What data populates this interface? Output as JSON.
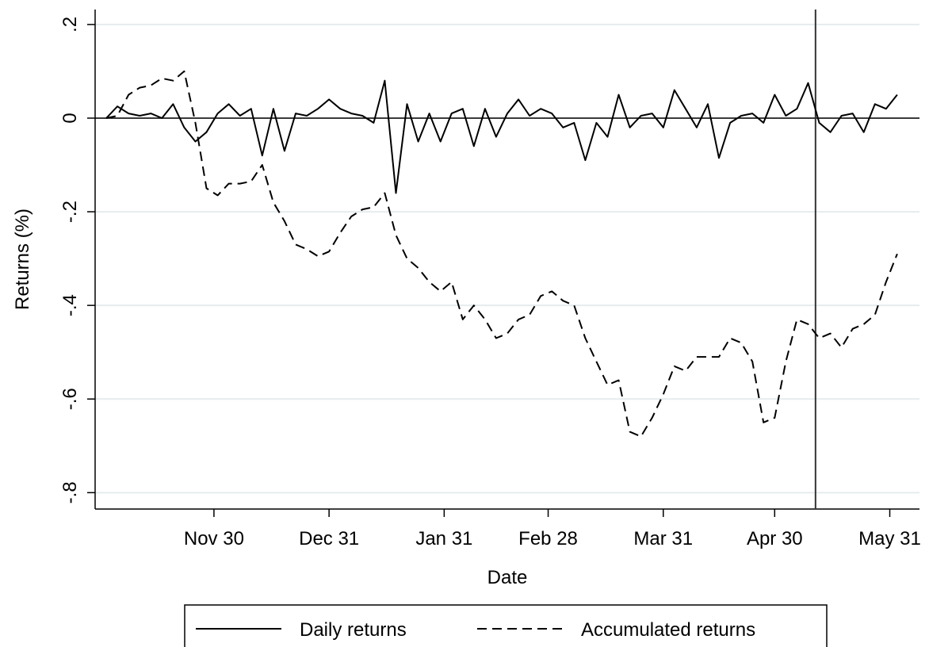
{
  "chart_data": {
    "type": "line",
    "xlabel": "Date",
    "ylabel": "Returns (%)",
    "x": [
      -29,
      -26,
      -23,
      -20,
      -17,
      -14,
      -11,
      -8,
      -5,
      -2,
      1,
      4,
      7,
      10,
      13,
      16,
      19,
      22,
      25,
      28,
      31,
      34,
      37,
      40,
      43,
      46,
      49,
      52,
      55,
      58,
      61,
      64,
      67,
      70,
      73,
      76,
      79,
      82,
      85,
      88,
      91,
      94,
      97,
      100,
      103,
      106,
      109,
      112,
      115,
      118,
      121,
      124,
      127,
      130,
      133,
      136,
      139,
      142,
      145,
      148,
      151,
      154,
      157,
      160,
      163,
      166,
      169,
      172,
      175,
      178,
      181,
      184
    ],
    "series": [
      {
        "name": "Daily returns",
        "color": "#000000",
        "dash": false,
        "values": [
          0,
          0.025,
          0.01,
          0.005,
          0.01,
          0,
          0.03,
          -0.02,
          -0.05,
          -0.03,
          0.01,
          0.03,
          0.005,
          0.02,
          -0.08,
          0.02,
          -0.07,
          0.01,
          0.005,
          0.02,
          0.04,
          0.02,
          0.01,
          0.005,
          -0.01,
          0.08,
          -0.16,
          0.03,
          -0.05,
          0.01,
          -0.05,
          0.01,
          0.02,
          -0.06,
          0.02,
          -0.04,
          0.01,
          0.04,
          0.005,
          0.02,
          0.01,
          -0.02,
          -0.01,
          -0.09,
          -0.01,
          -0.04,
          0.05,
          -0.02,
          0.005,
          0.01,
          -0.02,
          0.06,
          0.02,
          -0.02,
          0.03,
          -0.085,
          -0.01,
          0.005,
          0.01,
          -0.01,
          0.05,
          0.005,
          0.02,
          0.075,
          -0.01,
          -0.03,
          0.005,
          0.01,
          -0.03,
          0.03,
          0.02,
          0.05
        ]
      },
      {
        "name": "Accumulated returns",
        "color": "#000000",
        "dash": true,
        "values": [
          0,
          0.005,
          0.05,
          0.065,
          0.07,
          0.085,
          0.08,
          0.1,
          -0.01,
          -0.15,
          -0.165,
          -0.14,
          -0.14,
          -0.135,
          -0.1,
          -0.18,
          -0.22,
          -0.27,
          -0.28,
          -0.295,
          -0.285,
          -0.245,
          -0.21,
          -0.195,
          -0.19,
          -0.16,
          -0.25,
          -0.3,
          -0.32,
          -0.35,
          -0.37,
          -0.35,
          -0.43,
          -0.4,
          -0.43,
          -0.47,
          -0.46,
          -0.43,
          -0.42,
          -0.38,
          -0.37,
          -0.39,
          -0.4,
          -0.47,
          -0.52,
          -0.57,
          -0.56,
          -0.67,
          -0.68,
          -0.64,
          -0.59,
          -0.53,
          -0.54,
          -0.51,
          -0.51,
          -0.51,
          -0.47,
          -0.48,
          -0.52,
          -0.65,
          -0.64,
          -0.52,
          -0.43,
          -0.44,
          -0.47,
          -0.46,
          -0.49,
          -0.45,
          -0.44,
          -0.42,
          -0.35,
          -0.29
        ]
      }
    ],
    "xlim": [
      -32,
      190
    ],
    "xticks": [
      {
        "value": 0,
        "label": "Nov 30"
      },
      {
        "value": 31,
        "label": "Dec 31"
      },
      {
        "value": 62,
        "label": "Jan 31"
      },
      {
        "value": 90,
        "label": "Feb 28"
      },
      {
        "value": 121,
        "label": "Mar 31"
      },
      {
        "value": 151,
        "label": "Apr 30"
      },
      {
        "value": 182,
        "label": "May 31"
      }
    ],
    "ylim": [
      -0.835,
      0.232
    ],
    "yticks": [
      {
        "value": 0.2,
        "label": ".2"
      },
      0,
      {
        "value": -0.2,
        "label": "-.2"
      },
      {
        "value": -0.4,
        "label": "-.4"
      },
      {
        "value": -0.6,
        "label": "-.6"
      },
      {
        "value": -0.8,
        "label": "-.8"
      }
    ],
    "grid": true,
    "hline": 0,
    "vline": 162,
    "legend": "bottom"
  }
}
